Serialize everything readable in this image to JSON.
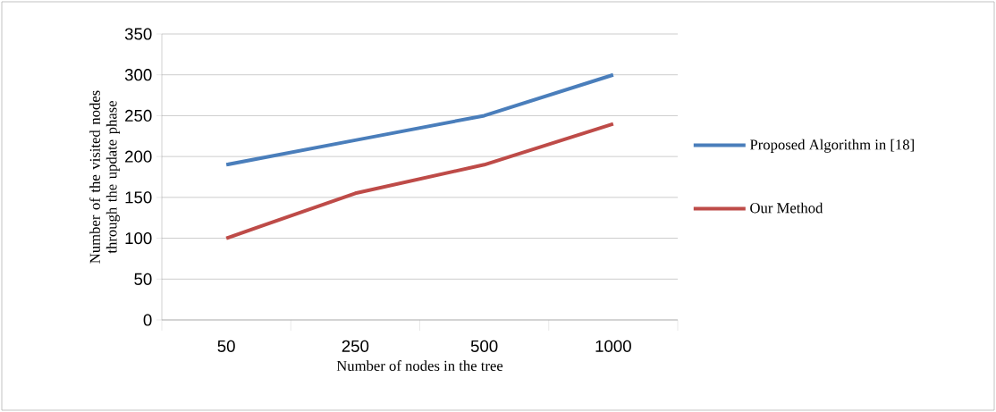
{
  "chart_data": {
    "type": "line",
    "xlabel": "Number of nodes in the tree",
    "ylabel": "Number of the visited nodes through the update phase",
    "categories": [
      "50",
      "250",
      "500",
      "1000"
    ],
    "series": [
      {
        "name": "Proposed Algorithm in [18]",
        "color": "#4a7ebb",
        "values": [
          190,
          220,
          250,
          300
        ]
      },
      {
        "name": "Our Method",
        "color": "#be4b48",
        "values": [
          100,
          155,
          190,
          240
        ]
      }
    ],
    "ylim": [
      0,
      350
    ],
    "yticks": [
      0,
      50,
      100,
      150,
      200,
      250,
      300,
      350
    ],
    "grid": "y",
    "legend": "right",
    "marker": "none",
    "line_style": "solid"
  }
}
